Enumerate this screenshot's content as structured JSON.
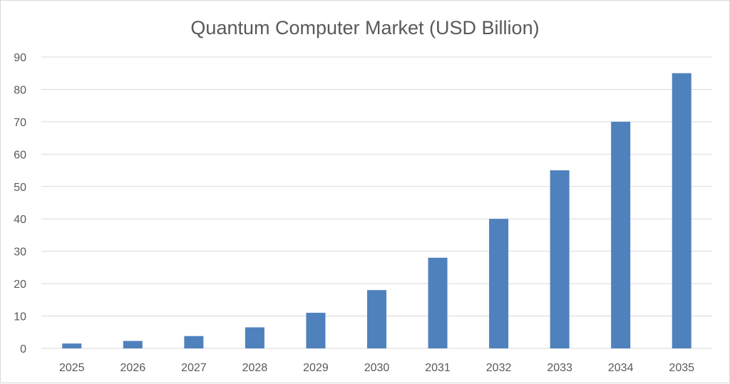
{
  "chart_data": {
    "type": "bar",
    "title": "Quantum Computer Market (USD Billion)",
    "xlabel": "",
    "ylabel": "",
    "categories": [
      "2025",
      "2026",
      "2027",
      "2028",
      "2029",
      "2030",
      "2031",
      "2032",
      "2033",
      "2034",
      "2035"
    ],
    "values": [
      1.5,
      2.3,
      3.8,
      6.5,
      11,
      18,
      28,
      40,
      55,
      70,
      85
    ],
    "ylim": [
      0,
      90
    ],
    "yticks": [
      0,
      10,
      20,
      30,
      40,
      50,
      60,
      70,
      80,
      90
    ],
    "grid": true,
    "legend": "none",
    "bar_color": "#4f81bd"
  }
}
